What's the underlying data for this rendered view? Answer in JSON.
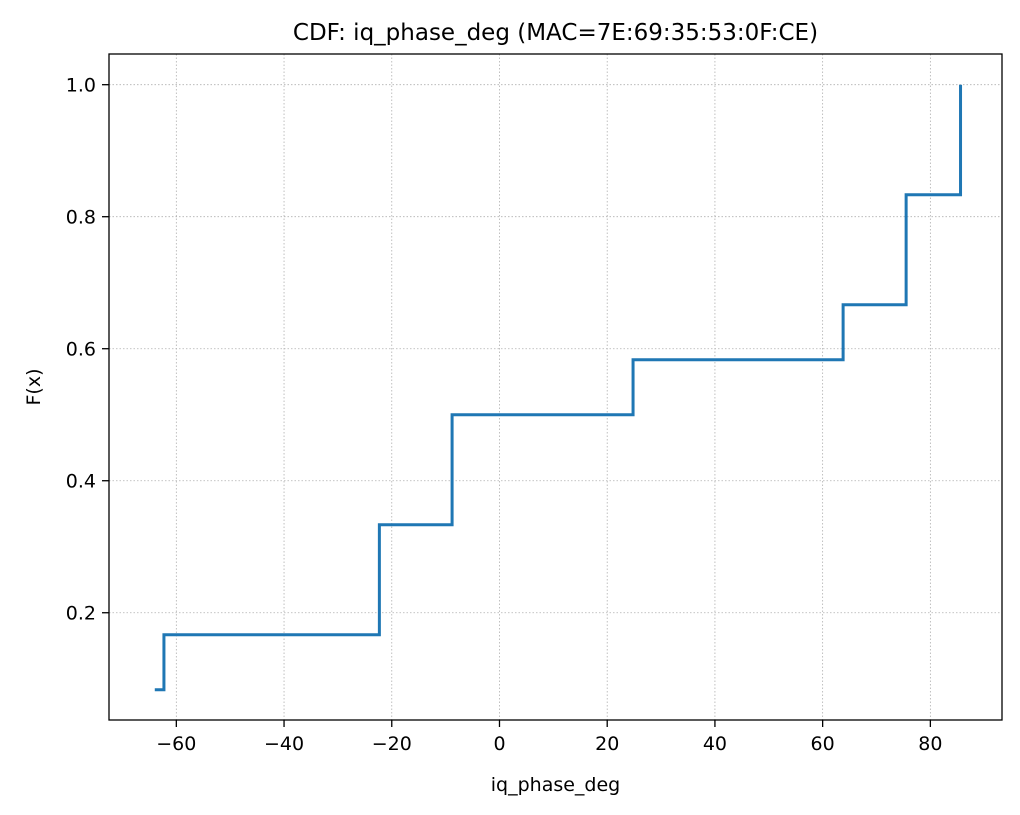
{
  "chart_data": {
    "type": "line",
    "drawstyle": "steps-post",
    "title": "CDF: iq_phase_deg (MAC=7E:69:35:53:0F:CE)",
    "xlabel": "iq_phase_deg",
    "ylabel": "F(x)",
    "xlim": [
      -72.5,
      93.3
    ],
    "ylim": [
      0.0375,
      1.0465
    ],
    "xticks": [
      -60,
      -40,
      -20,
      0,
      20,
      40,
      60,
      80
    ],
    "xtick_labels": [
      "−60",
      "−40",
      "−20",
      "0",
      "20",
      "40",
      "60",
      "80"
    ],
    "yticks": [
      0.2,
      0.4,
      0.6,
      0.8,
      1.0
    ],
    "ytick_labels": [
      "0.2",
      "0.4",
      "0.6",
      "0.8",
      "1.0"
    ],
    "grid": true,
    "grid_style": "dotted",
    "legend": "none",
    "series": [
      {
        "color": "#1f77b4",
        "x": [
          -64.0,
          -62.3,
          -22.3,
          -8.8,
          24.8,
          63.8,
          75.5,
          85.6,
          85.6
        ],
        "y": [
          0.0833,
          0.1667,
          0.3333,
          0.5,
          0.5833,
          0.6667,
          0.8333,
          0.8333,
          1.0
        ]
      }
    ]
  }
}
